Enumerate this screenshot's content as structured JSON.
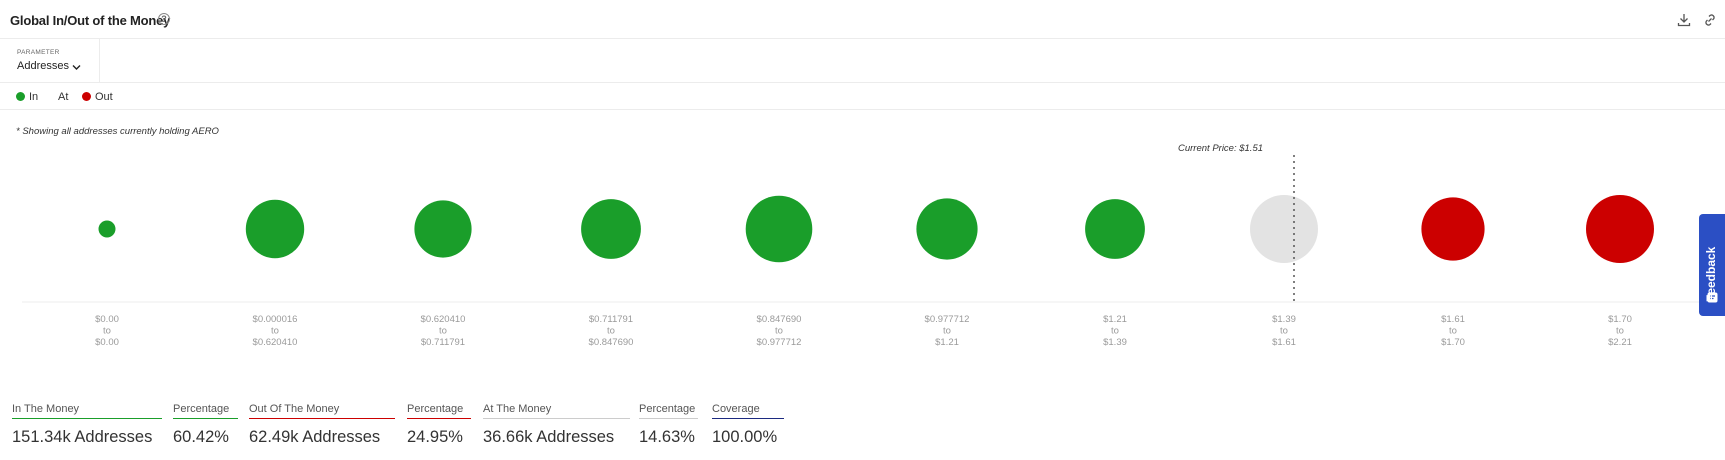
{
  "header": {
    "title": "Global In/Out of the Money",
    "help_icon": "help-circle-icon",
    "actions": [
      "download-icon",
      "link-icon"
    ]
  },
  "parameter": {
    "label": "PARAMETER",
    "value": "Addresses"
  },
  "legend": [
    {
      "label": "In",
      "color": "#1a9e2a"
    },
    {
      "label": "At",
      "color": "#e3e3e3"
    },
    {
      "label": "Out",
      "color": "#cc0000"
    }
  ],
  "note": "* Showing all addresses currently holding AERO",
  "chart_data": {
    "type": "bubble",
    "title": "",
    "current_price_label": "Current Price: $1.51",
    "current_price": 1.51,
    "colors": {
      "in": "#1a9e2a",
      "at": "#e3e3e3",
      "out": "#cc0000"
    },
    "buckets": [
      {
        "from": "$0.00",
        "to": "$0.00",
        "status": "in",
        "relative_size": 0.25
      },
      {
        "from": "$0.000016",
        "to": "$0.620410",
        "status": "in",
        "relative_size": 0.86
      },
      {
        "from": "$0.620410",
        "to": "$0.711791",
        "status": "in",
        "relative_size": 0.84
      },
      {
        "from": "$0.711791",
        "to": "$0.847690",
        "status": "in",
        "relative_size": 0.88
      },
      {
        "from": "$0.847690",
        "to": "$0.977712",
        "status": "in",
        "relative_size": 0.98
      },
      {
        "from": "$0.977712",
        "to": "$1.21",
        "status": "in",
        "relative_size": 0.9
      },
      {
        "from": "$1.21",
        "to": "$1.39",
        "status": "in",
        "relative_size": 0.88
      },
      {
        "from": "$1.39",
        "to": "$1.61",
        "status": "at",
        "relative_size": 1.0
      },
      {
        "from": "$1.61",
        "to": "$1.70",
        "status": "out",
        "relative_size": 0.93
      },
      {
        "from": "$1.70",
        "to": "$2.21",
        "status": "out",
        "relative_size": 1.0
      }
    ],
    "range_connector": "to"
  },
  "feedback": {
    "label": "Feedback",
    "icon": "feedback-icon"
  },
  "stats": [
    {
      "label": "In The Money",
      "value": "151.34k Addresses",
      "underline": "#1a9e2a"
    },
    {
      "label": "Percentage",
      "value": "60.42%",
      "underline": "#1a9e2a"
    },
    {
      "label": "Out Of The Money",
      "value": "62.49k Addresses",
      "underline": "#cc0000"
    },
    {
      "label": "Percentage",
      "value": "24.95%",
      "underline": "#cc0000"
    },
    {
      "label": "At The Money",
      "value": "36.66k Addresses",
      "underline": "#cccccc"
    },
    {
      "label": "Percentage",
      "value": "14.63%",
      "underline": "#cccccc"
    },
    {
      "label": "Coverage",
      "value": "100.00%",
      "underline": "#1c2a80"
    }
  ]
}
